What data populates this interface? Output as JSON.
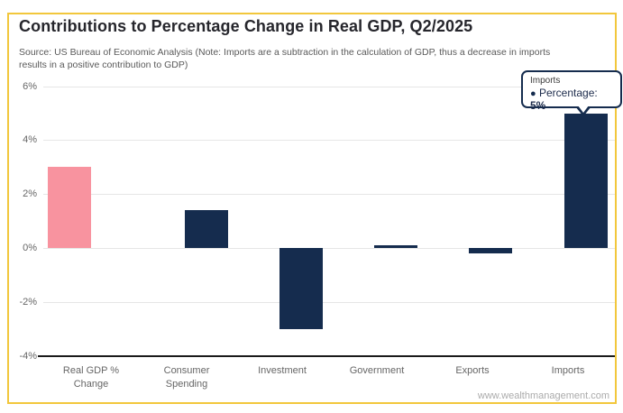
{
  "page": {
    "title": "Contributions to Percentage Change in Real GDP, Q2/2025",
    "source_note": "Source: US Bureau of Economic Analysis (Note: Imports are a subtraction in the calculation of GDP, thus a decrease in imports results in a positive contribution to GDP)",
    "watermark": "www.wealthmanagement.com"
  },
  "colors": {
    "card_border": "#F2C73C",
    "navy": "#152C4E",
    "pink": "#F8939F",
    "grid": "#E6E6E6",
    "axis": "#1A1A1A",
    "muted_text": "#666666"
  },
  "tooltip": {
    "category": "Imports",
    "bullet": "●",
    "series_label": "Percentage:",
    "value_label": "5%"
  },
  "chart_data": {
    "type": "bar",
    "title": "Contributions to Percentage Change in Real GDP, Q2/2025",
    "categories": [
      "Real GDP % Change",
      "Consumer Spending",
      "Investment",
      "Government",
      "Exports",
      "Imports"
    ],
    "values": [
      3.0,
      1.4,
      -3.0,
      0.1,
      -0.2,
      5.0
    ],
    "bar_colors": [
      "#F8939F",
      "#152C4E",
      "#152C4E",
      "#152C4E",
      "#152C4E",
      "#152C4E"
    ],
    "xlabel": "",
    "ylabel": "",
    "ylim": [
      -4,
      6
    ],
    "ytick_values": [
      6,
      4,
      2,
      0,
      -2,
      -4
    ],
    "ytick_labels": [
      "6%",
      "4%",
      "2%",
      "0%",
      "-2%",
      "-4%"
    ],
    "grid": true,
    "legend": false,
    "annotation": "Tooltip on Imports bar: Percentage: 5%"
  }
}
